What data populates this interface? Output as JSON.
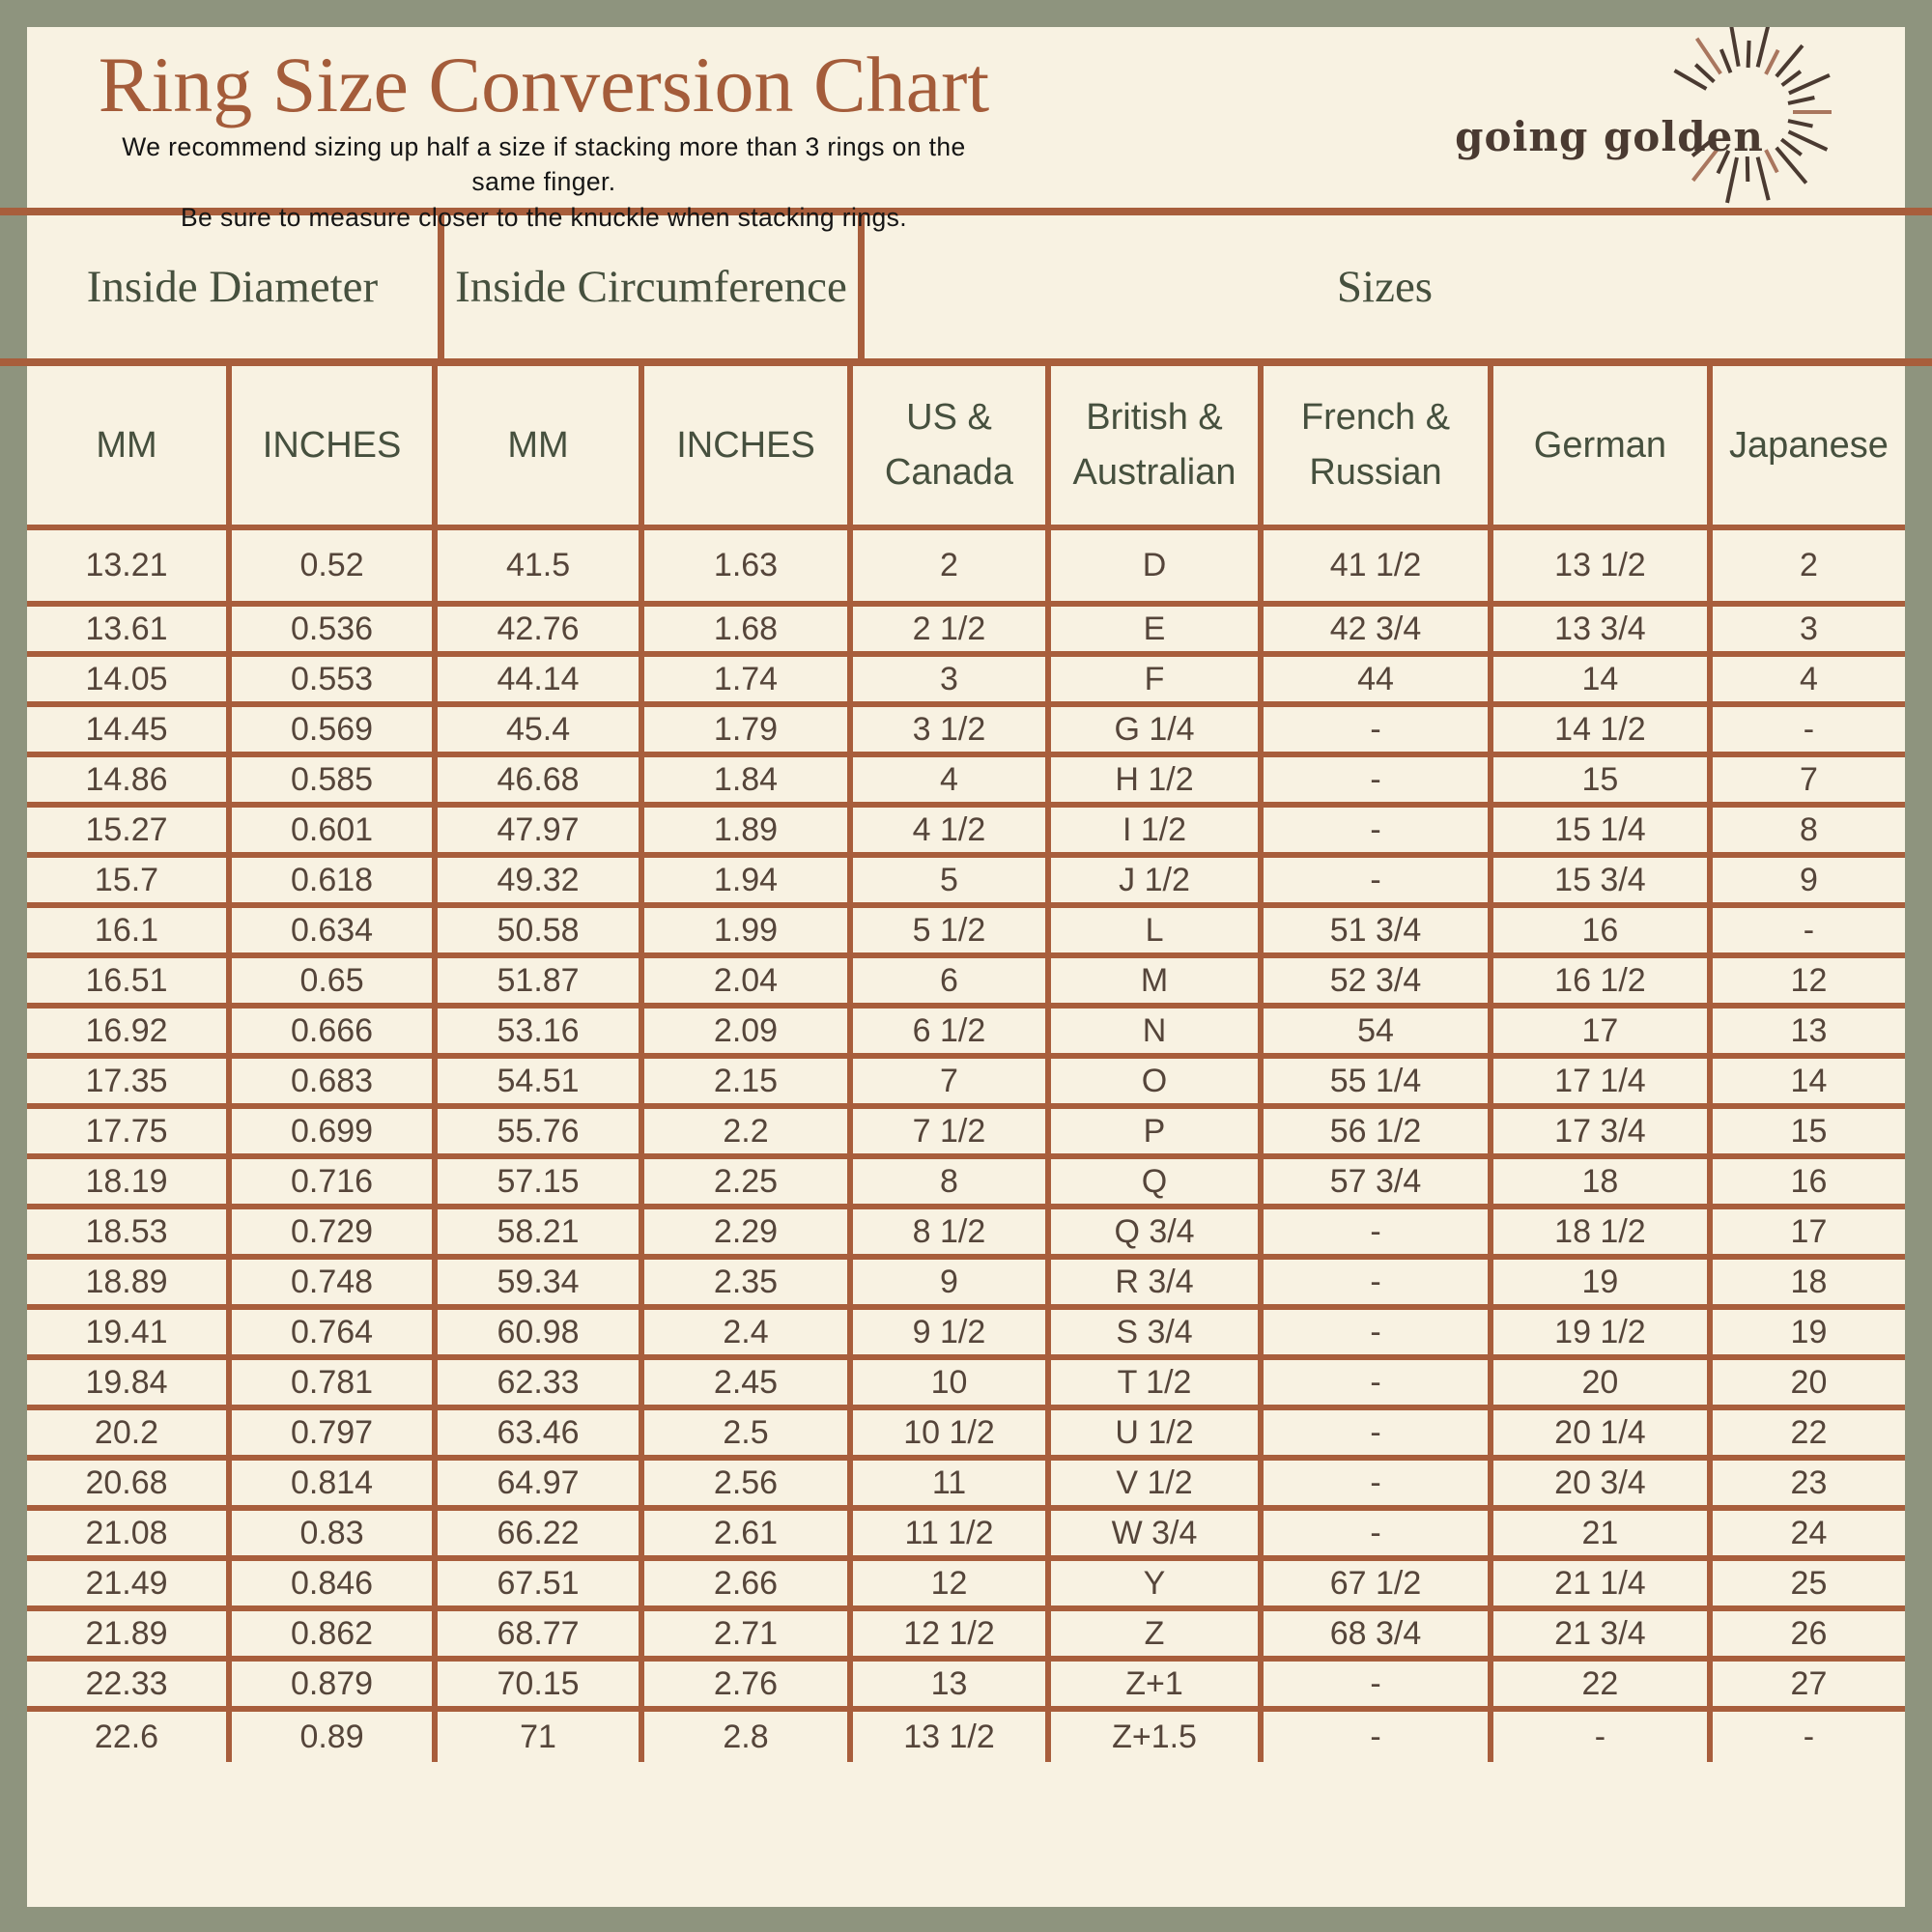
{
  "page": {
    "title": "Ring Size Conversion Chart",
    "subtitle_line1": "We recommend sizing up half a size if stacking more than 3 rings on the same finger.",
    "subtitle_line2": "Be sure to measure closer to the knuckle when stacking rings.",
    "brand": "going golden"
  },
  "colors": {
    "frame_olive": "#8e947e",
    "background_cream": "#f8f2e2",
    "line_rust": "#a85e3c",
    "title_rust": "#a45c3a",
    "header_green": "#46503e",
    "data_brown": "#55453a",
    "logo_brown": "#4a3a31",
    "ray_accent": "#a9765e"
  },
  "table": {
    "groups": [
      {
        "label": "Inside Diameter"
      },
      {
        "label": "Inside Circumference"
      },
      {
        "label": "Sizes"
      }
    ],
    "columns": [
      "MM",
      "INCHES",
      "MM",
      "INCHES",
      "US & Canada",
      "British & Australian",
      "French & Russian",
      "German",
      "Japanese"
    ],
    "rows": [
      [
        "13.21",
        "0.52",
        "41.5",
        "1.63",
        "2",
        "D",
        "41 1/2",
        "13 1/2",
        "2"
      ],
      [
        "13.61",
        "0.536",
        "42.76",
        "1.68",
        "2 1/2",
        "E",
        "42 3/4",
        "13 3/4",
        "3"
      ],
      [
        "14.05",
        "0.553",
        "44.14",
        "1.74",
        "3",
        "F",
        "44",
        "14",
        "4"
      ],
      [
        "14.45",
        "0.569",
        "45.4",
        "1.79",
        "3 1/2",
        "G 1/4",
        "-",
        "14 1/2",
        "-"
      ],
      [
        "14.86",
        "0.585",
        "46.68",
        "1.84",
        "4",
        "H 1/2",
        "-",
        "15",
        "7"
      ],
      [
        "15.27",
        "0.601",
        "47.97",
        "1.89",
        "4 1/2",
        "I 1/2",
        "-",
        "15 1/4",
        "8"
      ],
      [
        "15.7",
        "0.618",
        "49.32",
        "1.94",
        "5",
        "J 1/2",
        "-",
        "15 3/4",
        "9"
      ],
      [
        "16.1",
        "0.634",
        "50.58",
        "1.99",
        "5 1/2",
        "L",
        "51 3/4",
        "16",
        "-"
      ],
      [
        "16.51",
        "0.65",
        "51.87",
        "2.04",
        "6",
        "M",
        "52 3/4",
        "16 1/2",
        "12"
      ],
      [
        "16.92",
        "0.666",
        "53.16",
        "2.09",
        "6 1/2",
        "N",
        "54",
        "17",
        "13"
      ],
      [
        "17.35",
        "0.683",
        "54.51",
        "2.15",
        "7",
        "O",
        "55 1/4",
        "17 1/4",
        "14"
      ],
      [
        "17.75",
        "0.699",
        "55.76",
        "2.2",
        "7 1/2",
        "P",
        "56 1/2",
        "17 3/4",
        "15"
      ],
      [
        "18.19",
        "0.716",
        "57.15",
        "2.25",
        "8",
        "Q",
        "57 3/4",
        "18",
        "16"
      ],
      [
        "18.53",
        "0.729",
        "58.21",
        "2.29",
        "8 1/2",
        "Q 3/4",
        "-",
        "18 1/2",
        "17"
      ],
      [
        "18.89",
        "0.748",
        "59.34",
        "2.35",
        "9",
        "R 3/4",
        "-",
        "19",
        "18"
      ],
      [
        "19.41",
        "0.764",
        "60.98",
        "2.4",
        "9 1/2",
        "S 3/4",
        "-",
        "19 1/2",
        "19"
      ],
      [
        "19.84",
        "0.781",
        "62.33",
        "2.45",
        "10",
        "T 1/2",
        "-",
        "20",
        "20"
      ],
      [
        "20.2",
        "0.797",
        "63.46",
        "2.5",
        "10 1/2",
        "U 1/2",
        "-",
        "20 1/4",
        "22"
      ],
      [
        "20.68",
        "0.814",
        "64.97",
        "2.56",
        "11",
        "V 1/2",
        "-",
        "20 3/4",
        "23"
      ],
      [
        "21.08",
        "0.83",
        "66.22",
        "2.61",
        "11 1/2",
        "W 3/4",
        "-",
        "21",
        "24"
      ],
      [
        "21.49",
        "0.846",
        "67.51",
        "2.66",
        "12",
        "Y",
        "67 1/2",
        "21 1/4",
        "25"
      ],
      [
        "21.89",
        "0.862",
        "68.77",
        "2.71",
        "12 1/2",
        "Z",
        "68 3/4",
        "21 3/4",
        "26"
      ],
      [
        "22.33",
        "0.879",
        "70.15",
        "2.76",
        "13",
        "Z+1",
        "-",
        "22",
        "27"
      ],
      [
        "22.6",
        "0.89",
        "71",
        "2.8",
        "13 1/2",
        "Z+1.5",
        "-",
        "-",
        "-"
      ]
    ]
  }
}
